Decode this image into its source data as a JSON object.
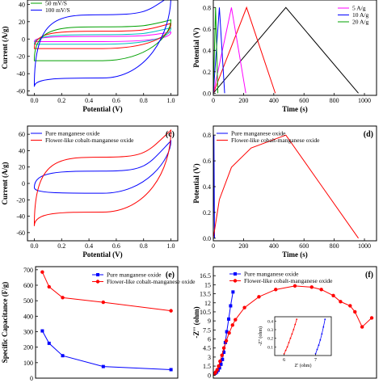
{
  "chart_data": [
    {
      "id": "a",
      "type": "line",
      "title": "",
      "xlabel": "Potential (V)",
      "ylabel": "Current (A/g)",
      "xlim": [
        -0.05,
        1.05
      ],
      "ylim": [
        -65,
        45
      ],
      "xticks": [
        0.0,
        0.2,
        0.4,
        0.6,
        0.8,
        1.0
      ],
      "xtick_labels": [
        "0.0",
        "0.2",
        "0.4",
        "0.6",
        "0.8",
        "1.0"
      ],
      "yticks": [
        -60,
        -40,
        -20,
        0,
        20,
        40
      ],
      "ytick_labels": [
        "-60",
        "-40",
        "-20",
        "0",
        "20",
        "40"
      ],
      "panel_label": "",
      "legend_position": "top-left",
      "series": [
        {
          "name": "",
          "color": "#ff00ff",
          "loop": {
            "x0": 0.0,
            "x1": 1.0,
            "top": 3,
            "bottom": -3,
            "start_up": 3,
            "start_down": -3,
            "end_up": 8,
            "end_down": 0
          }
        },
        {
          "name": "",
          "color": "#00bfbf",
          "loop": {
            "x0": 0.0,
            "x1": 1.0,
            "top": 5,
            "bottom": -6,
            "start_up": 5,
            "start_down": -6,
            "end_up": 13,
            "end_down": 1
          }
        },
        {
          "name": "",
          "color": "#ff0000",
          "loop": {
            "x0": 0.0,
            "x1": 1.0,
            "top": 9,
            "bottom": -11,
            "start_up": 9,
            "start_down": -11,
            "end_up": 18,
            "end_down": 2
          }
        },
        {
          "name": "50 mV/S",
          "color": "#00a000",
          "loop": {
            "x0": 0.0,
            "x1": 1.0,
            "top": 14,
            "bottom": -25,
            "start_up": 14,
            "start_down": -25,
            "end_up": 22,
            "end_down": 3
          }
        },
        {
          "name": "100 mV/S",
          "color": "#0000ff",
          "loop": {
            "x0": 0.0,
            "x1": 1.0,
            "top": 28,
            "bottom": -45,
            "start_up": 30,
            "start_down": -55,
            "end_up": 50,
            "end_down": 5
          }
        }
      ]
    },
    {
      "id": "b",
      "type": "line",
      "title": "",
      "xlabel": "Time (s)",
      "ylabel": "Potential (V)",
      "xlim": [
        0,
        1080
      ],
      "ylim": [
        -0.02,
        0.87
      ],
      "xticks": [
        0,
        200,
        400,
        600,
        800,
        1000
      ],
      "xtick_labels": [
        "0",
        "200",
        "400",
        "600",
        "800",
        "1000"
      ],
      "yticks": [
        0.0,
        0.2,
        0.4,
        0.6,
        0.8
      ],
      "ytick_labels": [
        "0.0",
        "0.2",
        "0.4",
        "0.6",
        "0.8"
      ],
      "panel_label": "",
      "legend_position": "top-right",
      "series": [
        {
          "name": "",
          "color": "#000000",
          "points": [
            [
              0,
              0
            ],
            [
              480,
              0.8
            ],
            [
              960,
              0
            ]
          ]
        },
        {
          "name": "",
          "color": "#ff0000",
          "points": [
            [
              0,
              0
            ],
            [
              220,
              0.8
            ],
            [
              410,
              0
            ]
          ]
        },
        {
          "name": "5 A/g",
          "color": "#ff00ff",
          "points": [
            [
              0,
              0
            ],
            [
              120,
              0.8
            ],
            [
              215,
              0
            ]
          ]
        },
        {
          "name": "10 A/g",
          "color": "#0000ff",
          "points": [
            [
              0,
              0
            ],
            [
              40,
              0.8
            ],
            [
              75,
              0
            ]
          ]
        },
        {
          "name": "20 A/g",
          "color": "#00a000",
          "points": [
            [
              0,
              0
            ],
            [
              15,
              0.8
            ],
            [
              30,
              0
            ]
          ]
        }
      ]
    },
    {
      "id": "c",
      "type": "line",
      "title": "",
      "xlabel": "Potential (V)",
      "ylabel": "Current (A/g)",
      "xlim": [
        -0.05,
        1.05
      ],
      "ylim": [
        -70,
        70
      ],
      "xticks": [
        0.0,
        0.2,
        0.4,
        0.6,
        0.8,
        1.0
      ],
      "xtick_labels": [
        "0.0",
        "0.2",
        "0.4",
        "0.6",
        "0.8",
        "1.0"
      ],
      "yticks": [
        -60,
        -40,
        -20,
        0,
        20,
        40,
        60
      ],
      "ytick_labels": [
        "-60",
        "-40",
        "-20",
        "0",
        "20",
        "40",
        "60"
      ],
      "panel_label": "(c)",
      "legend_position": "top-left",
      "series": [
        {
          "name": "Pure manganese oxide",
          "color": "#0000ff",
          "loop": {
            "x0": 0.0,
            "x1": 1.0,
            "top": 15,
            "bottom": -12,
            "start_up": 5,
            "start_down": -5,
            "end_up": 52,
            "end_down": 30
          }
        },
        {
          "name": "Flower-like cobalt-manganese oxide",
          "color": "#ff0000",
          "loop": {
            "x0": 0.0,
            "x1": 1.0,
            "top": 32,
            "bottom": -35,
            "start_up": 10,
            "start_down": -52,
            "end_up": 65,
            "end_down": 15
          }
        }
      ]
    },
    {
      "id": "d",
      "type": "line",
      "title": "",
      "xlabel": "Time (s)",
      "ylabel": "Potential (V)",
      "xlim": [
        0,
        1080
      ],
      "ylim": [
        -0.02,
        0.87
      ],
      "xticks": [
        0,
        200,
        400,
        600,
        800,
        1000
      ],
      "xtick_labels": [
        "0",
        "200",
        "400",
        "600",
        "800",
        "1000"
      ],
      "yticks": [
        0.0,
        0.2,
        0.4,
        0.6,
        0.8
      ],
      "ytick_labels": [
        "0.0",
        "0.2",
        "0.4",
        "0.6",
        "0.8"
      ],
      "panel_label": "(d)",
      "legend_position": "top-left",
      "series": [
        {
          "name": "Pure manganese oxide",
          "color": "#0000ff",
          "points": [
            [
              0,
              0
            ],
            [
              4,
              0.8
            ],
            [
              8,
              0
            ]
          ]
        },
        {
          "name": "Flower-like cobalt-manganese oxide",
          "color": "#ff0000",
          "points": [
            [
              0,
              0
            ],
            [
              40,
              0.3
            ],
            [
              120,
              0.55
            ],
            [
              250,
              0.7
            ],
            [
              480,
              0.8
            ],
            [
              720,
              0.4
            ],
            [
              960,
              0
            ]
          ]
        }
      ]
    },
    {
      "id": "e",
      "type": "line",
      "title": "",
      "xlabel": "",
      "ylabel": "Specific Capacitance (F/g)",
      "xlim": [
        0,
        21
      ],
      "ylim": [
        0,
        720
      ],
      "xticks": [],
      "xtick_labels": [],
      "yticks": [
        0,
        100,
        200,
        300,
        400,
        500,
        600,
        700
      ],
      "ytick_labels": [
        "0",
        "100",
        "200",
        "300",
        "400",
        "500",
        "600",
        "700"
      ],
      "panel_label": "(e)",
      "legend_position": "top-right",
      "series": [
        {
          "name": "Pure manganese oxide",
          "color": "#0000ff",
          "marker": "square",
          "x": [
            1,
            2,
            4,
            10,
            20
          ],
          "y": [
            305,
            225,
            145,
            75,
            55
          ]
        },
        {
          "name": "Flower-like cobalt-manganese oxide",
          "color": "#ff0000",
          "marker": "circle",
          "x": [
            1,
            2,
            4,
            10,
            20
          ],
          "y": [
            685,
            590,
            520,
            490,
            435
          ]
        }
      ]
    },
    {
      "id": "f",
      "type": "scatter",
      "title": "",
      "xlabel": "",
      "ylabel": "-Z'' (ohm)",
      "xlim": [
        0,
        34
      ],
      "ylim": [
        -0.5,
        18
      ],
      "xticks": [],
      "xtick_labels": [],
      "yticks": [
        0,
        1.5,
        3,
        4.5,
        6,
        7.5,
        9,
        10.5,
        12,
        13.5,
        15,
        16.5
      ],
      "ytick_labels": [
        "0",
        "1.5",
        "3",
        "4.5",
        "6",
        "7.5",
        "9",
        "10.5",
        "12",
        "13.5",
        "15",
        "16.5"
      ],
      "panel_label": "(f)",
      "legend_position": "top-left",
      "series": [
        {
          "name": "Pure manganese oxide",
          "color": "#0000ff",
          "marker": "square",
          "x": [
            0.4,
            0.7,
            1.0,
            1.3,
            1.6,
            1.9,
            2.2,
            2.5,
            2.8,
            3.2,
            3.6,
            4.1
          ],
          "y": [
            0.3,
            0.5,
            0.8,
            1.2,
            1.8,
            2.6,
            3.8,
            5.4,
            7.2,
            9.3,
            11.5,
            13.8
          ]
        },
        {
          "name": "Flower-like cobalt-manganese oxide",
          "color": "#ff0000",
          "marker": "circle",
          "x": [
            0.2,
            0.5,
            0.8,
            1.1,
            1.4,
            1.8,
            2.2,
            2.7,
            3.3,
            4.0,
            4.6,
            6.5,
            9.5,
            13,
            17,
            20.5,
            22.5,
            25,
            26.5,
            28.5,
            29.5,
            31,
            33
          ],
          "y": [
            0.2,
            0.5,
            0.9,
            1.5,
            2.3,
            3.3,
            4.5,
            5.7,
            7.0,
            8.3,
            9.2,
            11.2,
            13.0,
            14.2,
            14.8,
            14.6,
            14.2,
            13.2,
            12.2,
            11.5,
            10.5,
            8.0,
            9.5
          ]
        }
      ],
      "inset": {
        "xlabel": "Z' (ohm)",
        "ylabel": "-Z'' (ohm)",
        "xlim": [
          5.7,
          7.5
        ],
        "ylim": [
          0,
          0.45
        ],
        "xticks": [
          6,
          7
        ],
        "xtick_labels": [
          "6",
          "7"
        ],
        "yticks": [
          0.1,
          0.2,
          0.3,
          0.4
        ],
        "ytick_labels": [
          "0.1",
          "0.2",
          "0.3",
          "0.4"
        ],
        "series": [
          {
            "color": "#ff0000",
            "x": [
              6.0,
              6.05,
              6.1,
              6.15,
              6.2,
              6.25,
              6.3,
              6.35,
              6.4
            ],
            "y": [
              0.02,
              0.06,
              0.1,
              0.15,
              0.2,
              0.25,
              0.3,
              0.36,
              0.42
            ]
          },
          {
            "color": "#0000ff",
            "x": [
              7.0,
              7.05,
              7.1,
              7.15,
              7.2,
              7.25,
              7.3
            ],
            "y": [
              0.02,
              0.07,
              0.12,
              0.18,
              0.25,
              0.33,
              0.42
            ]
          }
        ]
      }
    }
  ]
}
